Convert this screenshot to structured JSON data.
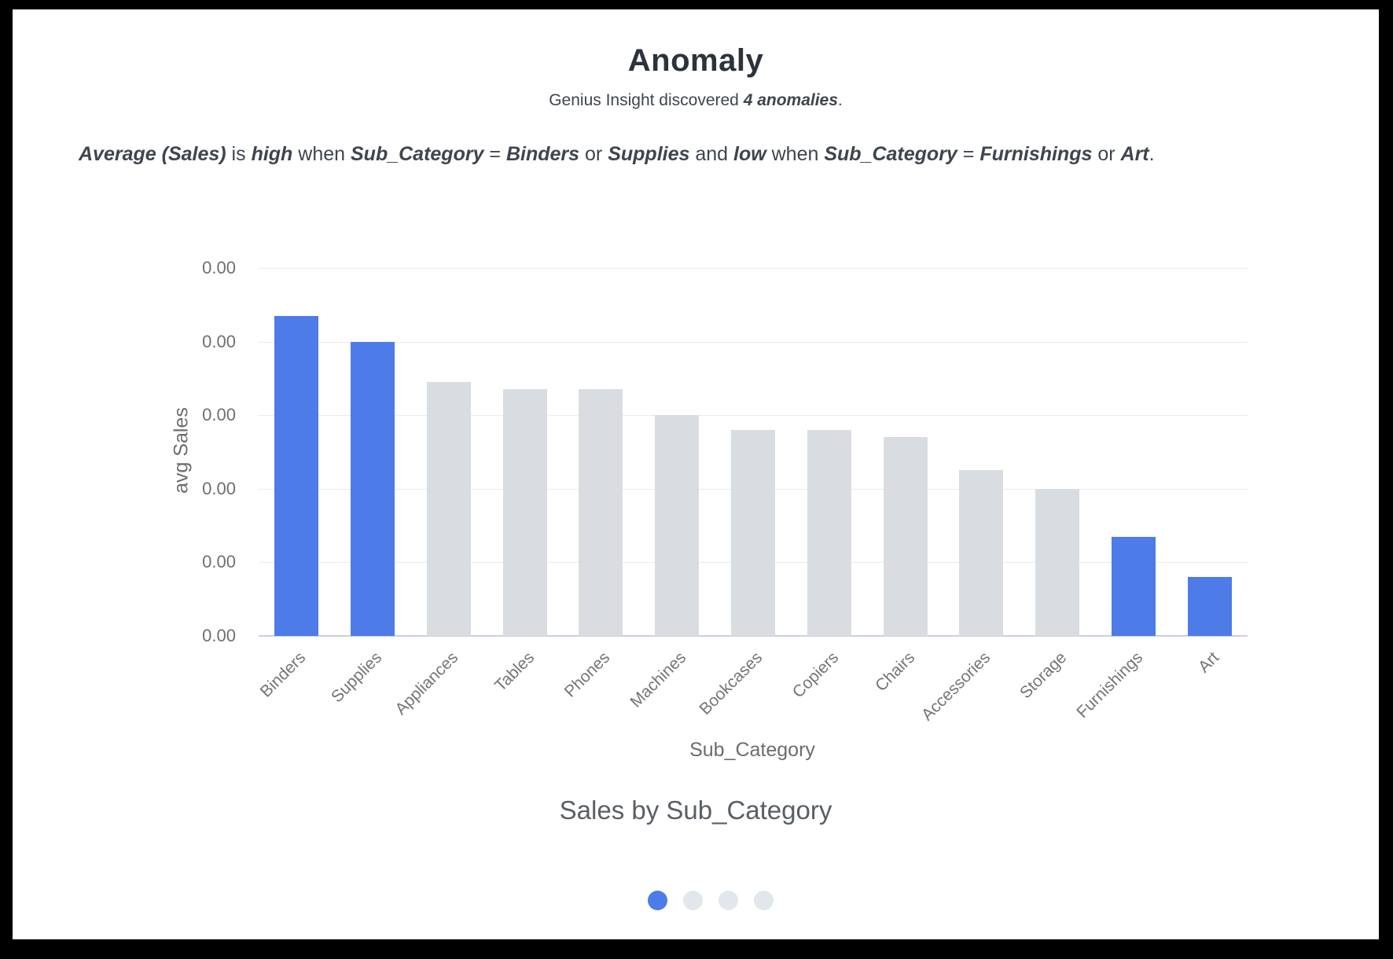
{
  "header": {
    "title": "Anomaly",
    "subtitle": {
      "prefix": "Genius Insight discovered ",
      "highlight": "4 anomalies",
      "suffix": "."
    }
  },
  "insight": {
    "segments": [
      {
        "text": "Average (Sales)",
        "em": true
      },
      {
        "text": " is ",
        "em": false
      },
      {
        "text": "high",
        "em": true
      },
      {
        "text": " when ",
        "em": false
      },
      {
        "text": "Sub_Category",
        "em": true
      },
      {
        "text": " = ",
        "em": false
      },
      {
        "text": "Binders",
        "em": true
      },
      {
        "text": " or ",
        "em": false
      },
      {
        "text": "Supplies",
        "em": true
      },
      {
        "text": " and ",
        "em": false
      },
      {
        "text": "low",
        "em": true
      },
      {
        "text": " when ",
        "em": false
      },
      {
        "text": "Sub_Category",
        "em": true
      },
      {
        "text": " = ",
        "em": false
      },
      {
        "text": "Furnishings",
        "em": true
      },
      {
        "text": " or ",
        "em": false
      },
      {
        "text": "Art",
        "em": true
      },
      {
        "text": ".",
        "em": false
      }
    ]
  },
  "chart_data": {
    "type": "bar",
    "title": "Sales by Sub_Category",
    "xlabel": "Sub_Category",
    "ylabel": "avg Sales",
    "categories": [
      "Binders",
      "Supplies",
      "Appliances",
      "Tables",
      "Phones",
      "Machines",
      "Bookcases",
      "Copiers",
      "Chairs",
      "Accessories",
      "Storage",
      "Furnishings",
      "Art"
    ],
    "series": [
      {
        "name": "avg Sales",
        "values": [
          0.87,
          0.8,
          0.69,
          0.67,
          0.67,
          0.6,
          0.56,
          0.56,
          0.54,
          0.45,
          0.4,
          0.27,
          0.16
        ]
      }
    ],
    "highlighted": [
      true,
      true,
      false,
      false,
      false,
      false,
      false,
      false,
      false,
      false,
      false,
      true,
      true
    ],
    "highlighted_categories": [
      "Binders",
      "Supplies",
      "Furnishings",
      "Art"
    ],
    "y_tick_labels": [
      "0.00",
      "0.00",
      "0.00",
      "0.00",
      "0.00",
      "0.00"
    ],
    "value_note": "y-axis tick labels all display 0.00 (values hidden); series values are fractions of the plotted axis span",
    "grid": true,
    "legend": "none",
    "colors": {
      "highlight": "#4d7ce8",
      "normal": "#d9dde2"
    }
  },
  "pagination": {
    "dots": [
      {
        "label": "slide-1",
        "active": true
      },
      {
        "label": "slide-2",
        "active": false
      },
      {
        "label": "slide-3",
        "active": false
      },
      {
        "label": "slide-4",
        "active": false
      }
    ],
    "active_color": "#4d7ce8",
    "inactive_color": "#e2e7ed"
  }
}
